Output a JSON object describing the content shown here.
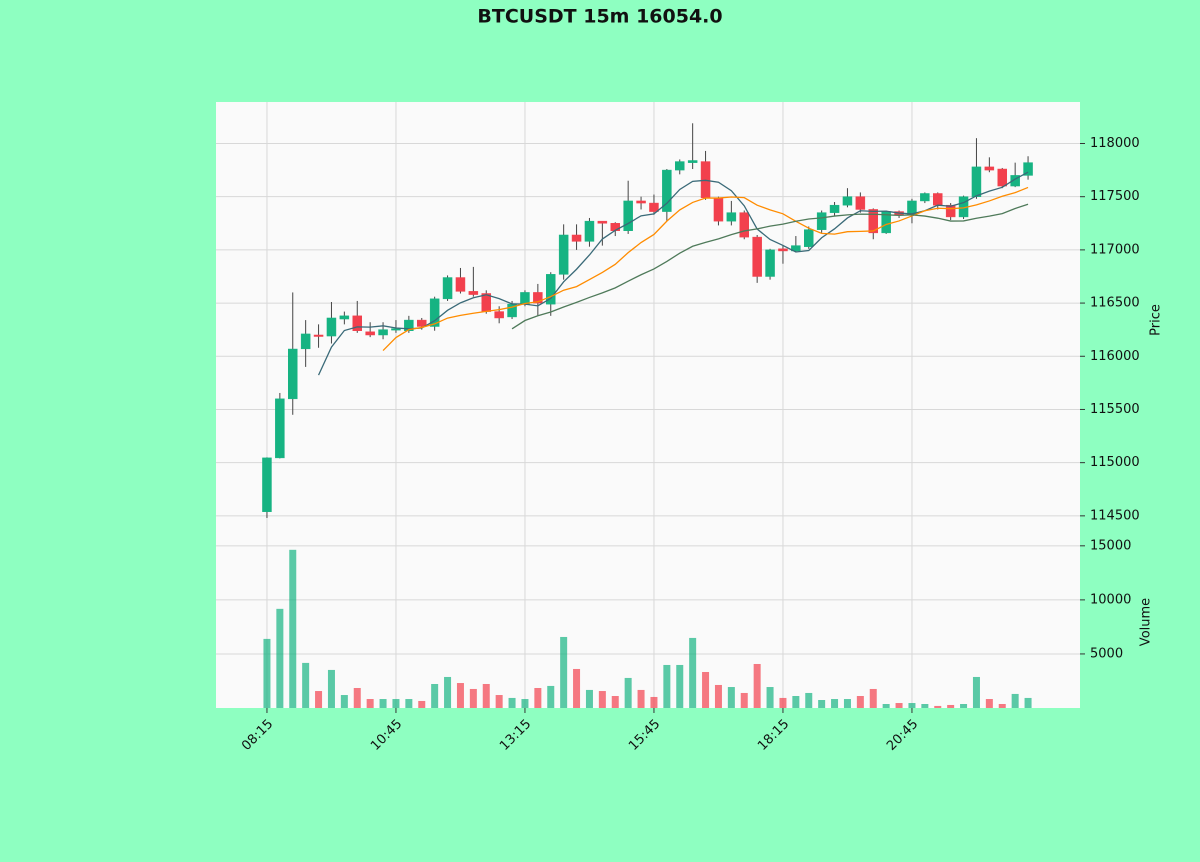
{
  "chart_data": {
    "type": "candlestick",
    "title": "BTCUSDT 15m 16054.0",
    "x": [
      "08:15",
      null,
      null,
      null,
      null,
      null,
      null,
      null,
      null,
      null,
      "10:45",
      null,
      null,
      null,
      null,
      null,
      null,
      null,
      null,
      null,
      "13:15",
      null,
      null,
      null,
      null,
      null,
      null,
      null,
      null,
      null,
      "15:45",
      null,
      null,
      null,
      null,
      null,
      null,
      null,
      null,
      null,
      "18:15",
      null,
      null,
      null,
      null,
      null,
      null,
      null,
      null,
      null,
      "20:45",
      null,
      null,
      null,
      null,
      null,
      null,
      null,
      null,
      null
    ],
    "open": [
      114539,
      115045,
      115600,
      116070,
      116200,
      116190,
      116350,
      116380,
      116230,
      116200,
      116250,
      116240,
      116340,
      116280,
      116540,
      116740,
      116610,
      116590,
      116420,
      116370,
      116490,
      116600,
      116490,
      116770,
      117140,
      117080,
      117270,
      117250,
      117180,
      117460,
      117440,
      117360,
      117750,
      117820,
      117830,
      117490,
      117270,
      117350,
      117120,
      116750,
      117010,
      116990,
      117030,
      117190,
      117350,
      117420,
      117500,
      117380,
      117160,
      117360,
      117330,
      117460,
      117530,
      117420,
      117310,
      117500,
      117780,
      117760,
      117600,
      117700
    ],
    "high": [
      115050,
      115655,
      116600,
      116340,
      116300,
      116510,
      116420,
      116520,
      116320,
      116320,
      116340,
      116380,
      116360,
      116560,
      116760,
      116830,
      116840,
      116620,
      116470,
      116520,
      116620,
      116680,
      116790,
      117240,
      117240,
      117300,
      117270,
      117260,
      117650,
      117500,
      117520,
      117760,
      117850,
      118190,
      117930,
      117500,
      117460,
      117370,
      117140,
      117010,
      117040,
      117130,
      117220,
      117370,
      117450,
      117580,
      117540,
      117390,
      117370,
      117370,
      117480,
      117540,
      117540,
      117440,
      117510,
      118050,
      117870,
      117770,
      117820,
      117880
    ],
    "low": [
      114480,
      115040,
      115450,
      115900,
      116080,
      116120,
      116300,
      116220,
      116180,
      116160,
      116220,
      116220,
      116250,
      116240,
      116520,
      116590,
      116560,
      116400,
      116310,
      116350,
      116470,
      116380,
      116380,
      116720,
      117000,
      117030,
      117040,
      117130,
      117150,
      117380,
      117330,
      117270,
      117710,
      117760,
      117470,
      117230,
      117230,
      117100,
      116690,
      116720,
      116870,
      116980,
      117010,
      117160,
      117320,
      117400,
      117350,
      117100,
      117150,
      117300,
      117250,
      117440,
      117380,
      117280,
      117290,
      117480,
      117730,
      117580,
      117590,
      117660
    ],
    "close": [
      115045,
      115600,
      116068,
      116210,
      116190,
      116360,
      116380,
      116240,
      116200,
      116250,
      116260,
      116340,
      116280,
      116540,
      116740,
      116610,
      116580,
      116420,
      116360,
      116490,
      116600,
      116500,
      116770,
      117140,
      117080,
      117270,
      117250,
      117180,
      117460,
      117440,
      117360,
      117750,
      117830,
      117840,
      117490,
      117270,
      117350,
      117120,
      116750,
      117000,
      116990,
      117040,
      117190,
      117350,
      117420,
      117500,
      117380,
      117160,
      117360,
      117330,
      117460,
      117530,
      117420,
      117310,
      117500,
      117780,
      117750,
      117600,
      117700,
      117820
    ],
    "up_color": "#16b382",
    "down_color": "#f2404d",
    "ylabel": "Price",
    "ylim": [
      114320,
      118390
    ],
    "yticks": [
      114500,
      115000,
      115500,
      116000,
      116500,
      117000,
      117500,
      118000
    ],
    "grid": true,
    "moving_averages": [
      {
        "color": "#3a6a78",
        "values": [
          null,
          null,
          null,
          null,
          115823,
          116086,
          116242,
          116276,
          116274,
          116286,
          116266,
          116258,
          116266,
          116334,
          116432,
          116502,
          116550,
          116578,
          116542,
          116492,
          116490,
          116474,
          116544,
          116700,
          116818,
          116952,
          117102,
          117184,
          117248,
          117320,
          117338,
          117438,
          117568,
          117644,
          117654,
          117636,
          117556,
          117414,
          117196,
          117098,
          117042,
          116980,
          116994,
          117114,
          117198,
          117300,
          117368,
          117362,
          117364,
          117346,
          117338,
          117368,
          117420,
          117410,
          117444,
          117508,
          117552,
          117588,
          117666,
          117730
        ]
      },
      {
        "color": "#ff8c00",
        "values": [
          null,
          null,
          null,
          null,
          null,
          null,
          null,
          null,
          null,
          116054,
          116176,
          116250,
          116271,
          116304,
          116359,
          116384,
          116404,
          116422,
          116438,
          116462,
          116496,
          116512,
          116561,
          116621,
          116655,
          116721,
          116788,
          116864,
          116974,
          117069,
          117145,
          117270,
          117376,
          117446,
          117487,
          117487,
          117497,
          117491,
          117420,
          117376,
          117339,
          117268,
          117204,
          117155,
          117148,
          117171,
          117174,
          117178,
          117239,
          117272,
          117319,
          117368,
          117391,
          117387,
          117395,
          117423,
          117460,
          117504,
          117538,
          117587
        ]
      },
      {
        "color": "#4f7a5a",
        "values": [
          null,
          null,
          null,
          null,
          null,
          null,
          null,
          null,
          null,
          null,
          null,
          null,
          null,
          null,
          null,
          null,
          null,
          null,
          null,
          116258,
          116336,
          116381,
          116416,
          116463,
          116507,
          116553,
          116596,
          116643,
          116706,
          116766,
          116821,
          116891,
          116969,
          117034,
          117071,
          117104,
          117143,
          117178,
          117197,
          117223,
          117242,
          117269,
          117290,
          117301,
          117318,
          117329,
          117336,
          117335,
          117330,
          117324,
          117329,
          117318,
          117298,
          117271,
          117272,
          117297,
          117317,
          117341,
          117389,
          117429
        ]
      }
    ],
    "volume": {
      "ylabel": "Volume",
      "values": [
        6390,
        9170,
        14630,
        4170,
        1570,
        3520,
        1200,
        1850,
        830,
        830,
        830,
        830,
        650,
        2220,
        2870,
        2310,
        1760,
        2220,
        1200,
        930,
        830,
        1850,
        2040,
        6570,
        3610,
        1670,
        1570,
        1110,
        2780,
        1670,
        1020,
        3980,
        3980,
        6480,
        3330,
        2130,
        1940,
        1390,
        4070,
        1940,
        930,
        1110,
        1390,
        740,
        830,
        830,
        1110,
        1760,
        370,
        460,
        460,
        370,
        190,
        280,
        370,
        2870,
        830,
        370,
        1300,
        930
      ],
      "ylim": [
        0,
        16000
      ],
      "yticks": [
        5000,
        10000,
        15000
      ]
    }
  }
}
